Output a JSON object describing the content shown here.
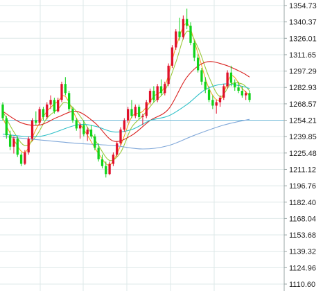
{
  "chart_data": {
    "type": "candlestick",
    "y_axis": {
      "position": "right",
      "ticks": [
        "1354.73",
        "1340.37",
        "1326.01",
        "1311.65",
        "1297.29",
        "1282.93",
        "1268.57",
        "1254.21",
        "1239.85",
        "1225.48",
        "1211.12",
        "1196.76",
        "1182.40",
        "1168.04",
        "1153.68",
        "1139.32",
        "1124.96",
        "1110.60"
      ],
      "ylim": [
        1110.6,
        1354.73
      ]
    },
    "grid": true,
    "current_price_line": {
      "value": 1254.21,
      "color": "#6fb8d8"
    },
    "candle_colors": {
      "up": "#e0102a",
      "down": "#10d31a"
    },
    "ohlc": [
      [
        1268,
        1270,
        1254,
        1256
      ],
      [
        1256,
        1258,
        1238,
        1241
      ],
      [
        1241,
        1245,
        1228,
        1231
      ],
      [
        1231,
        1240,
        1225,
        1238
      ],
      [
        1238,
        1240,
        1222,
        1224
      ],
      [
        1224,
        1226,
        1214,
        1216
      ],
      [
        1216,
        1228,
        1215,
        1226
      ],
      [
        1226,
        1240,
        1224,
        1238
      ],
      [
        1238,
        1256,
        1236,
        1254
      ],
      [
        1254,
        1262,
        1250,
        1252
      ],
      [
        1252,
        1266,
        1250,
        1264
      ],
      [
        1264,
        1266,
        1254,
        1257
      ],
      [
        1257,
        1270,
        1255,
        1268
      ],
      [
        1268,
        1276,
        1264,
        1272
      ],
      [
        1272,
        1274,
        1260,
        1262
      ],
      [
        1262,
        1274,
        1261,
        1272
      ],
      [
        1272,
        1288,
        1270,
        1286
      ],
      [
        1286,
        1292,
        1276,
        1278
      ],
      [
        1278,
        1280,
        1262,
        1264
      ],
      [
        1264,
        1266,
        1252,
        1254
      ],
      [
        1254,
        1256,
        1245,
        1247
      ],
      [
        1247,
        1252,
        1238,
        1250
      ],
      [
        1250,
        1254,
        1240,
        1242
      ],
      [
        1242,
        1248,
        1236,
        1246
      ],
      [
        1246,
        1250,
        1238,
        1240
      ],
      [
        1240,
        1242,
        1228,
        1230
      ],
      [
        1230,
        1234,
        1218,
        1220
      ],
      [
        1220,
        1224,
        1212,
        1214
      ],
      [
        1214,
        1218,
        1204,
        1207
      ],
      [
        1207,
        1218,
        1206,
        1216
      ],
      [
        1216,
        1226,
        1214,
        1224
      ],
      [
        1224,
        1236,
        1222,
        1234
      ],
      [
        1234,
        1248,
        1232,
        1246
      ],
      [
        1246,
        1256,
        1244,
        1254
      ],
      [
        1254,
        1266,
        1252,
        1264
      ],
      [
        1264,
        1272,
        1256,
        1258
      ],
      [
        1258,
        1268,
        1256,
        1266
      ],
      [
        1266,
        1268,
        1255,
        1257
      ],
      [
        1257,
        1260,
        1250,
        1258
      ],
      [
        1258,
        1272,
        1256,
        1270
      ],
      [
        1270,
        1282,
        1268,
        1280
      ],
      [
        1280,
        1284,
        1270,
        1272
      ],
      [
        1272,
        1286,
        1270,
        1284
      ],
      [
        1284,
        1290,
        1276,
        1278
      ],
      [
        1278,
        1288,
        1276,
        1286
      ],
      [
        1286,
        1304,
        1284,
        1302
      ],
      [
        1302,
        1320,
        1300,
        1318
      ],
      [
        1318,
        1334,
        1316,
        1332
      ],
      [
        1332,
        1344,
        1324,
        1327
      ],
      [
        1327,
        1346,
        1325,
        1343
      ],
      [
        1343,
        1352,
        1334,
        1337
      ],
      [
        1337,
        1340,
        1320,
        1322
      ],
      [
        1322,
        1324,
        1306,
        1309
      ],
      [
        1309,
        1312,
        1296,
        1298
      ],
      [
        1298,
        1300,
        1285,
        1288
      ],
      [
        1288,
        1292,
        1278,
        1281
      ],
      [
        1281,
        1284,
        1270,
        1272
      ],
      [
        1272,
        1276,
        1264,
        1267
      ],
      [
        1267,
        1272,
        1260,
        1270
      ],
      [
        1270,
        1276,
        1266,
        1274
      ],
      [
        1274,
        1286,
        1272,
        1284
      ],
      [
        1284,
        1298,
        1282,
        1296
      ],
      [
        1296,
        1302,
        1284,
        1287
      ],
      [
        1287,
        1290,
        1280,
        1283
      ],
      [
        1283,
        1288,
        1278,
        1280
      ],
      [
        1280,
        1284,
        1274,
        1276
      ],
      [
        1276,
        1280,
        1272,
        1278
      ],
      [
        1278,
        1280,
        1270,
        1272
      ]
    ],
    "moving_averages": [
      {
        "color": "#f5a623"
      },
      {
        "color": "#9bc93b"
      },
      {
        "color": "#d9201e"
      },
      {
        "color": "#2fc0c8"
      },
      {
        "color": "#7fa7d9"
      }
    ],
    "ma_paths": [
      [
        [
          0,
          1256
        ],
        [
          3,
          1237
        ],
        [
          6,
          1226
        ],
        [
          9,
          1246
        ],
        [
          12,
          1262
        ],
        [
          15,
          1271
        ],
        [
          17,
          1275
        ],
        [
          20,
          1256
        ],
        [
          23,
          1241
        ],
        [
          26,
          1225
        ],
        [
          29,
          1215
        ],
        [
          32,
          1232
        ],
        [
          35,
          1257
        ],
        [
          38,
          1262
        ],
        [
          41,
          1275
        ],
        [
          44,
          1284
        ],
        [
          47,
          1318
        ],
        [
          50,
          1339
        ],
        [
          53,
          1313
        ],
        [
          56,
          1282
        ],
        [
          59,
          1272
        ],
        [
          62,
          1293
        ],
        [
          65,
          1282
        ],
        [
          67,
          1276
        ]
      ],
      [
        [
          0,
          1262
        ],
        [
          3,
          1244
        ],
        [
          6,
          1232
        ],
        [
          9,
          1240
        ],
        [
          12,
          1256
        ],
        [
          15,
          1264
        ],
        [
          17,
          1270
        ],
        [
          20,
          1262
        ],
        [
          23,
          1248
        ],
        [
          26,
          1232
        ],
        [
          29,
          1219
        ],
        [
          32,
          1226
        ],
        [
          35,
          1248
        ],
        [
          38,
          1258
        ],
        [
          41,
          1270
        ],
        [
          44,
          1280
        ],
        [
          47,
          1305
        ],
        [
          50,
          1332
        ],
        [
          53,
          1318
        ],
        [
          56,
          1292
        ],
        [
          59,
          1275
        ],
        [
          62,
          1286
        ],
        [
          65,
          1286
        ],
        [
          67,
          1280
        ]
      ],
      [
        [
          0,
          1262
        ],
        [
          5,
          1252
        ],
        [
          10,
          1250
        ],
        [
          15,
          1257
        ],
        [
          20,
          1262
        ],
        [
          25,
          1252
        ],
        [
          30,
          1236
        ],
        [
          35,
          1241
        ],
        [
          40,
          1254
        ],
        [
          45,
          1264
        ],
        [
          50,
          1292
        ],
        [
          55,
          1305
        ],
        [
          60,
          1303
        ],
        [
          65,
          1296
        ],
        [
          67,
          1292
        ]
      ],
      [
        [
          0,
          1242
        ],
        [
          10,
          1240
        ],
        [
          20,
          1250
        ],
        [
          25,
          1249
        ],
        [
          30,
          1244
        ],
        [
          35,
          1246
        ],
        [
          40,
          1254
        ],
        [
          45,
          1258
        ],
        [
          50,
          1268
        ],
        [
          55,
          1281
        ],
        [
          60,
          1286
        ],
        [
          65,
          1284
        ],
        [
          67,
          1282
        ]
      ],
      [
        [
          0,
          1240
        ],
        [
          10,
          1237
        ],
        [
          20,
          1234
        ],
        [
          30,
          1232
        ],
        [
          38,
          1229
        ],
        [
          45,
          1232
        ],
        [
          52,
          1241
        ],
        [
          60,
          1250
        ],
        [
          67,
          1255
        ]
      ]
    ]
  }
}
